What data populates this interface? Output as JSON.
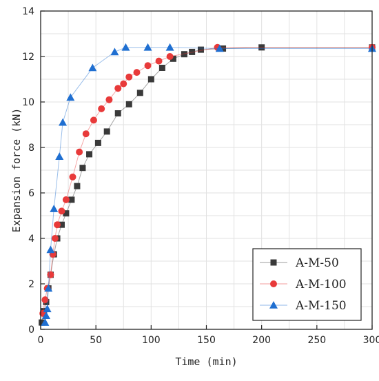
{
  "chart_data": {
    "type": "line",
    "title": "",
    "xlabel": "Time (min)",
    "ylabel": "Expansion force (kN)",
    "xlim": [
      0,
      300
    ],
    "ylim": [
      0,
      14
    ],
    "x_ticks": [
      0,
      50,
      100,
      150,
      200,
      250,
      300
    ],
    "y_ticks": [
      0,
      2,
      4,
      6,
      8,
      10,
      12,
      14
    ],
    "grid": true,
    "legend_position": "bottom-right",
    "series": [
      {
        "name": "A-M-50",
        "color": "#3a3a3a",
        "marker": "square",
        "x": [
          1,
          3,
          5,
          7,
          9,
          12,
          15,
          19,
          23,
          28,
          33,
          38,
          44,
          52,
          60,
          70,
          80,
          90,
          100,
          110,
          120,
          130,
          137,
          145,
          165,
          200,
          300
        ],
        "y": [
          0.3,
          0.8,
          1.2,
          1.8,
          2.4,
          3.3,
          4.0,
          4.6,
          5.1,
          5.7,
          6.3,
          7.1,
          7.7,
          8.2,
          8.7,
          9.5,
          9.9,
          10.4,
          11.0,
          11.5,
          11.9,
          12.1,
          12.2,
          12.3,
          12.35,
          12.4,
          12.4
        ]
      },
      {
        "name": "A-M-100",
        "color": "#e83a3a",
        "marker": "circle",
        "x": [
          2,
          4,
          6,
          9,
          11,
          13,
          15,
          19,
          23,
          29,
          35,
          41,
          48,
          55,
          62,
          70,
          75,
          80,
          87,
          97,
          107,
          117,
          160,
          300
        ],
        "y": [
          0.7,
          1.3,
          1.8,
          2.4,
          3.3,
          4.0,
          4.6,
          5.2,
          5.7,
          6.7,
          7.8,
          8.6,
          9.2,
          9.7,
          10.1,
          10.6,
          10.8,
          11.1,
          11.3,
          11.6,
          11.8,
          12.0,
          12.4,
          12.4
        ]
      },
      {
        "name": "A-M-150",
        "color": "#1f6fd1",
        "marker": "triangle",
        "x": [
          4,
          5,
          6,
          7,
          9,
          12,
          17,
          20,
          27,
          47,
          67,
          77,
          97,
          117,
          162,
          300
        ],
        "y": [
          0.3,
          0.6,
          0.9,
          1.8,
          3.5,
          5.3,
          7.6,
          9.1,
          10.2,
          11.5,
          12.2,
          12.4,
          12.4,
          12.4,
          12.35,
          12.35
        ]
      }
    ]
  }
}
